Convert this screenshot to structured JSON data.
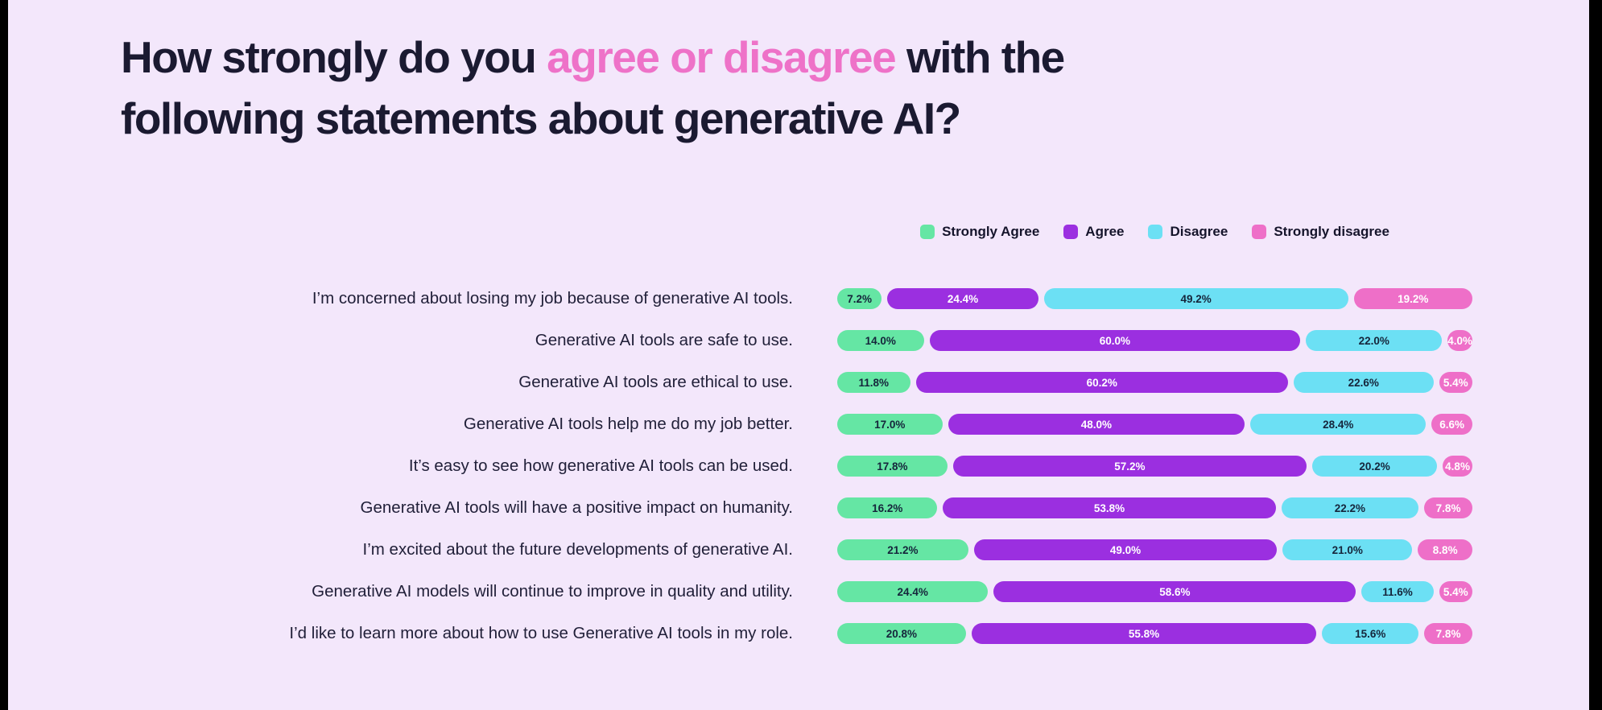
{
  "page": {
    "background": "#F3E7FB",
    "edge_color": "#000000"
  },
  "title": {
    "pre": "How strongly do you ",
    "highlight": "agree or disagree",
    "post_line1": " with the",
    "line2": "following statements about generative AI?",
    "text_color": "#1B1A31",
    "highlight_color": "#EE72C8"
  },
  "chart_data": {
    "type": "bar",
    "orientation": "horizontal-stacked",
    "value_format": "percent_one_decimal",
    "legend_position": "top-center-over-bars",
    "categories": [
      "I’m concerned about losing my job because of generative AI tools.",
      "Generative AI tools are safe to use.",
      "Generative AI tools are ethical to use.",
      "Generative AI tools help me do my job better.",
      "It’s easy to see how generative AI tools can be used.",
      "Generative AI tools will have a positive impact on humanity.",
      "I’m excited about the future developments of generative AI.",
      "Generative AI models will continue to improve in quality and utility.",
      "I’d like to learn more about how to use Generative AI tools in my role."
    ],
    "series": [
      {
        "name": "Strongly Agree",
        "key": "strongly-agree",
        "color": "#65E6A4",
        "label_color": "#15253B",
        "values": [
          7.2,
          14.0,
          11.8,
          17.0,
          17.8,
          16.2,
          21.2,
          24.4,
          20.8
        ]
      },
      {
        "name": "Agree",
        "key": "agree",
        "color": "#9B2FE0",
        "label_color": "#FFFFFF",
        "values": [
          24.4,
          60.0,
          60.2,
          48.0,
          57.2,
          53.8,
          49.0,
          58.6,
          55.8
        ]
      },
      {
        "name": "Disagree",
        "key": "disagree",
        "color": "#6CE0F4",
        "label_color": "#15253B",
        "values": [
          49.2,
          22.0,
          22.6,
          28.4,
          20.2,
          22.2,
          21.0,
          11.6,
          15.6
        ]
      },
      {
        "name": "Strongly disagree",
        "key": "strongly-disagree",
        "color": "#EE6FC8",
        "label_color": "#FFFFFF",
        "values": [
          19.2,
          4.0,
          5.4,
          6.6,
          4.8,
          7.8,
          8.8,
          5.4,
          7.8
        ]
      }
    ]
  }
}
